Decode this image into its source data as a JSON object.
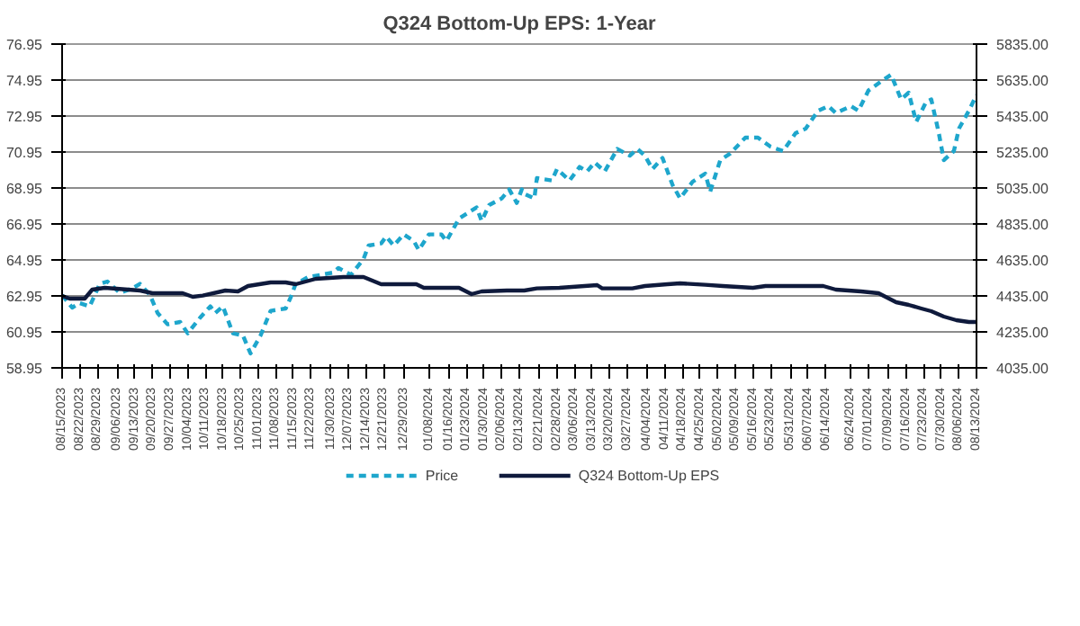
{
  "chart_data": {
    "type": "line",
    "title": "Q324 Bottom-Up EPS: 1-Year",
    "xlim": [
      "2023-08-15",
      "2024-08-13"
    ],
    "xticks": [
      {
        "value": "2023-08-15",
        "label": "08/15/2023"
      },
      {
        "value": "2023-08-22",
        "label": "08/22/2023"
      },
      {
        "value": "2023-08-29",
        "label": "08/29/2023"
      },
      {
        "value": "2023-09-06",
        "label": "09/06/2023"
      },
      {
        "value": "2023-09-13",
        "label": "09/13/2023"
      },
      {
        "value": "2023-09-20",
        "label": "09/20/2023"
      },
      {
        "value": "2023-09-27",
        "label": "09/27/2023"
      },
      {
        "value": "2023-10-04",
        "label": "10/04/2023"
      },
      {
        "value": "2023-10-11",
        "label": "10/11/2023"
      },
      {
        "value": "2023-10-18",
        "label": "10/18/2023"
      },
      {
        "value": "2023-10-25",
        "label": "10/25/2023"
      },
      {
        "value": "2023-11-01",
        "label": "11/01/2023"
      },
      {
        "value": "2023-11-08",
        "label": "11/08/2023"
      },
      {
        "value": "2023-11-15",
        "label": "11/15/2023"
      },
      {
        "value": "2023-11-22",
        "label": "11/22/2023"
      },
      {
        "value": "2023-11-30",
        "label": "11/30/2023"
      },
      {
        "value": "2023-12-07",
        "label": "12/07/2023"
      },
      {
        "value": "2023-12-14",
        "label": "12/14/2023"
      },
      {
        "value": "2023-12-21",
        "label": "12/21/2023"
      },
      {
        "value": "2023-12-29",
        "label": "12/29/2023"
      },
      {
        "value": "2024-01-08",
        "label": "01/08/2024"
      },
      {
        "value": "2024-01-16",
        "label": "01/16/2024"
      },
      {
        "value": "2024-01-23",
        "label": "01/23/2024"
      },
      {
        "value": "2024-01-30",
        "label": "01/30/2024"
      },
      {
        "value": "2024-02-06",
        "label": "02/06/2024"
      },
      {
        "value": "2024-02-13",
        "label": "02/13/2024"
      },
      {
        "value": "2024-02-21",
        "label": "02/21/2024"
      },
      {
        "value": "2024-02-28",
        "label": "02/28/2024"
      },
      {
        "value": "2024-03-06",
        "label": "03/06/2024"
      },
      {
        "value": "2024-03-13",
        "label": "03/13/2024"
      },
      {
        "value": "2024-03-20",
        "label": "03/20/2024"
      },
      {
        "value": "2024-03-27",
        "label": "03/27/2024"
      },
      {
        "value": "2024-04-04",
        "label": "04/04/2024"
      },
      {
        "value": "2024-04-11",
        "label": "04/11/2024"
      },
      {
        "value": "2024-04-18",
        "label": "04/18/2024"
      },
      {
        "value": "2024-04-25",
        "label": "04/25/2024"
      },
      {
        "value": "2024-05-02",
        "label": "05/02/2024"
      },
      {
        "value": "2024-05-09",
        "label": "05/09/2024"
      },
      {
        "value": "2024-05-16",
        "label": "05/16/2024"
      },
      {
        "value": "2024-05-23",
        "label": "05/23/2024"
      },
      {
        "value": "2024-05-31",
        "label": "05/31/2024"
      },
      {
        "value": "2024-06-07",
        "label": "06/07/2024"
      },
      {
        "value": "2024-06-14",
        "label": "06/14/2024"
      },
      {
        "value": "2024-06-24",
        "label": "06/24/2024"
      },
      {
        "value": "2024-07-01",
        "label": "07/01/2024"
      },
      {
        "value": "2024-07-09",
        "label": "07/09/2024"
      },
      {
        "value": "2024-07-16",
        "label": "07/16/2024"
      },
      {
        "value": "2024-07-23",
        "label": "07/23/2024"
      },
      {
        "value": "2024-07-30",
        "label": "07/30/2024"
      },
      {
        "value": "2024-08-06",
        "label": "08/06/2024"
      },
      {
        "value": "2024-08-13",
        "label": "08/13/2024"
      }
    ],
    "ylim": [
      58.95,
      76.95
    ],
    "yticks": [
      58.95,
      60.95,
      62.95,
      64.95,
      66.95,
      68.95,
      70.95,
      72.95,
      74.95,
      76.95
    ],
    "y2lim": [
      4035,
      5835
    ],
    "y2ticks": [
      {
        "value": 4035,
        "label": "4035.00"
      },
      {
        "value": 4235,
        "label": "4235.00"
      },
      {
        "value": 4435,
        "label": "4435.00"
      },
      {
        "value": 4635,
        "label": "4635.00"
      },
      {
        "value": 4835,
        "label": "4835.00"
      },
      {
        "value": 5035,
        "label": "5035.00"
      },
      {
        "value": 5235,
        "label": "5235.00"
      },
      {
        "value": 5435,
        "label": "5435.00"
      },
      {
        "value": 5635,
        "label": "5635.00"
      },
      {
        "value": 5835,
        "label": "5835.00"
      }
    ],
    "grid": "y",
    "legend": "bottom",
    "line_style": "solid",
    "marker": "none",
    "series": [
      {
        "name": "Price",
        "color": "#1ea6cc",
        "axis": "y2",
        "line_style": "dashed",
        "x": [
          "2023-08-15",
          "2023-08-19",
          "2023-08-22",
          "2023-08-26",
          "2023-08-30",
          "2023-09-02",
          "2023-09-07",
          "2023-09-12",
          "2023-09-15",
          "2023-09-19",
          "2023-09-22",
          "2023-09-26",
          "2023-10-01",
          "2023-10-04",
          "2023-10-09",
          "2023-10-13",
          "2023-10-15",
          "2023-10-18",
          "2023-10-22",
          "2023-10-26",
          "2023-10-29",
          "2023-11-02",
          "2023-11-06",
          "2023-11-12",
          "2023-11-14",
          "2023-11-16",
          "2023-11-21",
          "2023-11-26",
          "2023-12-01",
          "2023-12-03",
          "2023-12-08",
          "2023-12-13",
          "2023-12-15",
          "2023-12-20",
          "2023-12-22",
          "2023-12-25",
          "2023-12-29",
          "2024-01-02",
          "2024-01-04",
          "2024-01-08",
          "2024-01-13",
          "2024-01-15",
          "2024-01-20",
          "2024-01-27",
          "2024-01-29",
          "2024-02-01",
          "2024-02-06",
          "2024-02-09",
          "2024-02-12",
          "2024-02-14",
          "2024-02-15",
          "2024-02-19",
          "2024-02-20",
          "2024-02-26",
          "2024-02-28",
          "2024-03-04",
          "2024-03-08",
          "2024-03-11",
          "2024-03-14",
          "2024-03-18",
          "2024-03-23",
          "2024-03-28",
          "2024-03-31",
          "2024-04-03",
          "2024-04-06",
          "2024-04-10",
          "2024-04-14",
          "2024-04-17",
          "2024-04-22",
          "2024-04-27",
          "2024-04-29",
          "2024-05-03",
          "2024-05-07",
          "2024-05-13",
          "2024-05-18",
          "2024-05-23",
          "2024-05-28",
          "2024-06-02",
          "2024-06-06",
          "2024-06-11",
          "2024-06-15",
          "2024-06-18",
          "2024-06-24",
          "2024-06-27",
          "2024-07-01",
          "2024-07-06",
          "2024-07-10",
          "2024-07-14",
          "2024-07-17",
          "2024-07-20",
          "2024-07-24",
          "2024-07-26",
          "2024-07-29",
          "2024-07-31",
          "2024-08-04",
          "2024-08-06",
          "2024-08-10",
          "2024-08-13"
        ],
        "values": [
          4440,
          4370,
          4395,
          4377,
          4502,
          4515,
          4452,
          4477,
          4502,
          4440,
          4340,
          4277,
          4290,
          4227,
          4315,
          4377,
          4340,
          4377,
          4227,
          4215,
          4115,
          4215,
          4352,
          4365,
          4427,
          4502,
          4540,
          4552,
          4565,
          4590,
          4552,
          4640,
          4715,
          4727,
          4765,
          4715,
          4777,
          4740,
          4690,
          4777,
          4777,
          4740,
          4865,
          4927,
          4852,
          4940,
          4977,
          5027,
          4952,
          5027,
          5002,
          4977,
          5090,
          5077,
          5140,
          5077,
          5152,
          5127,
          5177,
          5127,
          5252,
          5215,
          5252,
          5215,
          5140,
          5202,
          5052,
          4977,
          5070,
          5115,
          5015,
          5190,
          5227,
          5315,
          5315,
          5265,
          5240,
          5340,
          5365,
          5465,
          5490,
          5452,
          5490,
          5465,
          5577,
          5627,
          5665,
          5527,
          5565,
          5402,
          5515,
          5527,
          5340,
          5190,
          5240,
          5365,
          5465,
          5552
        ]
      },
      {
        "name": "Q324 Bottom-Up EPS",
        "color": "#0f1a3c",
        "axis": "y",
        "x": [
          "2023-08-15",
          "2023-08-18",
          "2023-08-24",
          "2023-08-27",
          "2023-09-01",
          "2023-09-15",
          "2023-09-20",
          "2023-10-02",
          "2023-10-06",
          "2023-10-10",
          "2023-10-19",
          "2023-10-24",
          "2023-10-28",
          "2023-11-06",
          "2023-11-12",
          "2023-11-16",
          "2023-11-24",
          "2023-12-05",
          "2023-12-13",
          "2023-12-20",
          "2023-12-29",
          "2024-01-03",
          "2024-01-06",
          "2024-01-20",
          "2024-01-25",
          "2024-01-29",
          "2024-02-08",
          "2024-02-14",
          "2024-02-15",
          "2024-02-20",
          "2024-02-29",
          "2024-03-15",
          "2024-03-17",
          "2024-03-29",
          "2024-04-03",
          "2024-04-12",
          "2024-04-17",
          "2024-04-27",
          "2024-05-04",
          "2024-05-16",
          "2024-05-21",
          "2024-06-13",
          "2024-06-18",
          "2024-06-28",
          "2024-07-05",
          "2024-07-12",
          "2024-07-17",
          "2024-07-22",
          "2024-07-26",
          "2024-07-31",
          "2024-08-05",
          "2024-08-10",
          "2024-08-13"
        ],
        "values": [
          62.95,
          62.8,
          62.8,
          63.3,
          63.4,
          63.25,
          63.1,
          63.1,
          62.9,
          62.97,
          63.25,
          63.2,
          63.5,
          63.7,
          63.7,
          63.6,
          63.9,
          64.0,
          64.0,
          63.6,
          63.6,
          63.6,
          63.4,
          63.4,
          63.05,
          63.2,
          63.25,
          63.25,
          63.25,
          63.37,
          63.4,
          63.55,
          63.37,
          63.37,
          63.5,
          63.6,
          63.65,
          63.57,
          63.5,
          63.4,
          63.5,
          63.5,
          63.3,
          63.2,
          63.1,
          62.6,
          62.45,
          62.25,
          62.1,
          61.8,
          61.6,
          61.5,
          61.5
        ]
      }
    ]
  }
}
